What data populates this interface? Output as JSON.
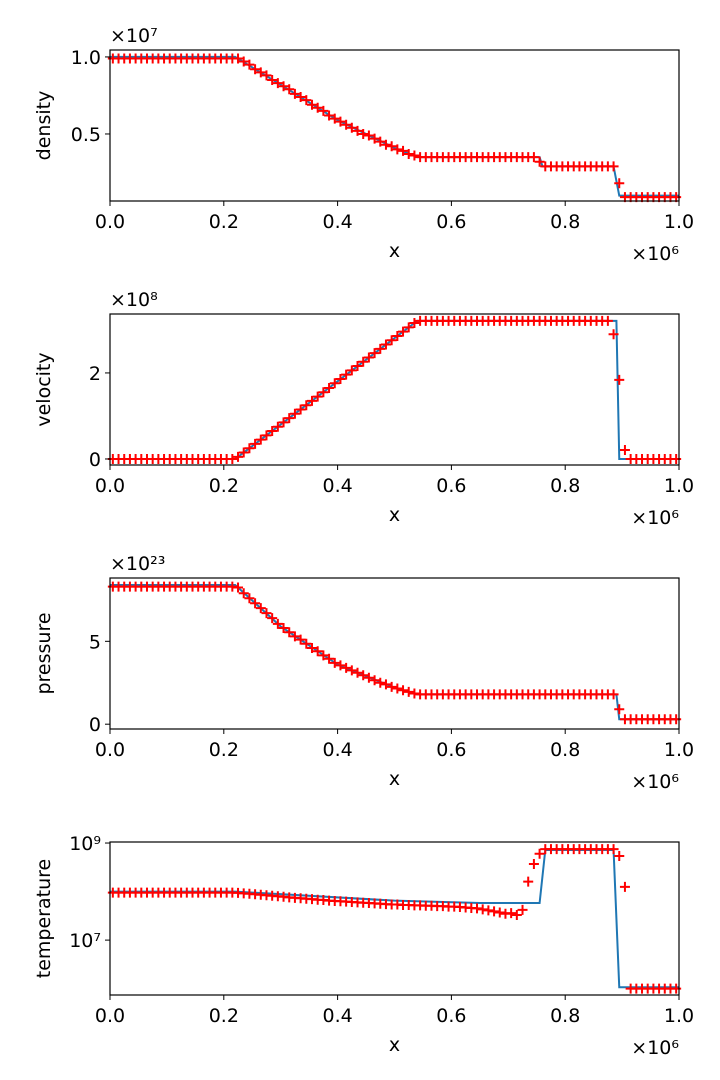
{
  "chart_data": [
    {
      "type": "line",
      "xlabel": "x",
      "ylabel": "density",
      "x_offset_label": "×10⁶",
      "y_offset_label": "×10⁷",
      "xlim": [
        0,
        1
      ],
      "xticks": [
        {
          "value": 0,
          "label": "0.0"
        },
        0.2,
        0.4,
        0.6,
        0.8,
        {
          "value": 1,
          "label": "1.0"
        }
      ],
      "ylim": [
        0.065,
        1.045
      ],
      "yticks": [
        0.5,
        {
          "value": 1,
          "label": "1.0"
        }
      ],
      "series": [
        {
          "color": "#1f77b4",
          "style": "line",
          "x": [
            0,
            0.22,
            0.3,
            0.4,
            0.5,
            0.54,
            0.755,
            0.76,
            0.885,
            0.895,
            1
          ],
          "values": [
            1,
            1,
            0.82,
            0.59,
            0.41,
            0.35,
            0.35,
            0.29,
            0.29,
            0.1,
            0.1
          ]
        },
        {
          "color": "#ff0000",
          "style": "plus",
          "x": [
            0.005,
            0.015,
            0.025,
            0.035,
            0.045,
            0.055,
            0.065,
            0.075,
            0.085,
            0.095,
            0.105,
            0.115,
            0.125,
            0.135,
            0.145,
            0.155,
            0.165,
            0.175,
            0.185,
            0.195,
            0.205,
            0.215,
            0.225,
            0.235,
            0.245,
            0.255,
            0.265,
            0.275,
            0.285,
            0.295,
            0.305,
            0.315,
            0.325,
            0.335,
            0.345,
            0.355,
            0.365,
            0.375,
            0.385,
            0.395,
            0.405,
            0.415,
            0.425,
            0.435,
            0.445,
            0.455,
            0.465,
            0.475,
            0.485,
            0.495,
            0.505,
            0.515,
            0.525,
            0.535,
            0.545,
            0.555,
            0.565,
            0.575,
            0.585,
            0.595,
            0.605,
            0.615,
            0.625,
            0.635,
            0.645,
            0.655,
            0.665,
            0.675,
            0.685,
            0.695,
            0.705,
            0.715,
            0.725,
            0.735,
            0.745,
            0.755,
            0.765,
            0.775,
            0.785,
            0.795,
            0.805,
            0.815,
            0.825,
            0.835,
            0.845,
            0.855,
            0.865,
            0.875,
            0.885,
            0.895,
            0.905,
            0.915,
            0.925,
            0.935,
            0.945,
            0.955,
            0.965,
            0.975,
            0.985,
            0.995
          ],
          "values": [
            0.99,
            0.99,
            0.99,
            0.99,
            0.99,
            0.99,
            0.99,
            0.99,
            0.99,
            0.99,
            0.99,
            0.99,
            0.99,
            0.99,
            0.99,
            0.99,
            0.99,
            0.99,
            0.99,
            0.99,
            0.99,
            0.99,
            0.99,
            0.97,
            0.95,
            0.92,
            0.9,
            0.88,
            0.85,
            0.83,
            0.81,
            0.79,
            0.76,
            0.74,
            0.72,
            0.69,
            0.67,
            0.65,
            0.62,
            0.6,
            0.58,
            0.56,
            0.54,
            0.52,
            0.5,
            0.49,
            0.47,
            0.45,
            0.43,
            0.42,
            0.4,
            0.39,
            0.37,
            0.36,
            0.35,
            0.35,
            0.35,
            0.35,
            0.35,
            0.35,
            0.35,
            0.35,
            0.35,
            0.35,
            0.35,
            0.35,
            0.35,
            0.35,
            0.35,
            0.35,
            0.35,
            0.35,
            0.35,
            0.35,
            0.35,
            0.32,
            0.29,
            0.29,
            0.29,
            0.29,
            0.29,
            0.29,
            0.29,
            0.29,
            0.29,
            0.29,
            0.29,
            0.29,
            0.29,
            0.18,
            0.09,
            0.09,
            0.09,
            0.09,
            0.09,
            0.09,
            0.09,
            0.09,
            0.09,
            0.09
          ]
        }
      ]
    },
    {
      "type": "line",
      "xlabel": "x",
      "ylabel": "velocity",
      "x_offset_label": "×10⁶",
      "y_offset_label": "×10⁸",
      "xlim": [
        0,
        1
      ],
      "xticks": [
        {
          "value": 0,
          "label": "0.0"
        },
        0.2,
        0.4,
        0.6,
        0.8,
        {
          "value": 1,
          "label": "1.0"
        }
      ],
      "ylim": [
        -0.14,
        3.37
      ],
      "yticks": [
        0,
        2
      ],
      "series": [
        {
          "color": "#1f77b4",
          "style": "line",
          "x": [
            0,
            0.22,
            0.54,
            0.89,
            0.895,
            1
          ],
          "values": [
            0,
            0,
            3.21,
            3.21,
            0,
            0
          ]
        },
        {
          "color": "#ff0000",
          "style": "plus",
          "x": [
            0.005,
            0.015,
            0.025,
            0.035,
            0.045,
            0.055,
            0.065,
            0.075,
            0.085,
            0.095,
            0.105,
            0.115,
            0.125,
            0.135,
            0.145,
            0.155,
            0.165,
            0.175,
            0.185,
            0.195,
            0.205,
            0.215,
            0.225,
            0.235,
            0.245,
            0.255,
            0.265,
            0.275,
            0.285,
            0.295,
            0.305,
            0.315,
            0.325,
            0.335,
            0.345,
            0.355,
            0.365,
            0.375,
            0.385,
            0.395,
            0.405,
            0.415,
            0.425,
            0.435,
            0.445,
            0.455,
            0.465,
            0.475,
            0.485,
            0.495,
            0.505,
            0.515,
            0.525,
            0.535,
            0.545,
            0.555,
            0.565,
            0.575,
            0.585,
            0.595,
            0.605,
            0.615,
            0.625,
            0.635,
            0.645,
            0.655,
            0.665,
            0.675,
            0.685,
            0.695,
            0.705,
            0.715,
            0.725,
            0.735,
            0.745,
            0.755,
            0.765,
            0.775,
            0.785,
            0.795,
            0.805,
            0.815,
            0.825,
            0.835,
            0.845,
            0.855,
            0.865,
            0.875,
            0.885,
            0.895,
            0.905,
            0.915,
            0.925,
            0.935,
            0.945,
            0.955,
            0.965,
            0.975,
            0.985,
            0.995
          ],
          "values": [
            0,
            0,
            0,
            0,
            0,
            0,
            0,
            0,
            0,
            0,
            0,
            0,
            0,
            0,
            0,
            0,
            0,
            0,
            0,
            0,
            0,
            0,
            0.05,
            0.15,
            0.25,
            0.35,
            0.45,
            0.55,
            0.65,
            0.75,
            0.85,
            0.95,
            1.05,
            1.15,
            1.25,
            1.35,
            1.45,
            1.55,
            1.65,
            1.76,
            1.86,
            1.96,
            2.06,
            2.16,
            2.26,
            2.36,
            2.46,
            2.56,
            2.66,
            2.76,
            2.86,
            2.96,
            3.06,
            3.16,
            3.21,
            3.21,
            3.21,
            3.21,
            3.21,
            3.21,
            3.21,
            3.21,
            3.21,
            3.21,
            3.21,
            3.21,
            3.21,
            3.21,
            3.21,
            3.21,
            3.21,
            3.21,
            3.21,
            3.21,
            3.21,
            3.21,
            3.21,
            3.21,
            3.21,
            3.21,
            3.21,
            3.21,
            3.21,
            3.21,
            3.21,
            3.21,
            3.21,
            3.21,
            2.9,
            1.84,
            0.21,
            0,
            0,
            0,
            0,
            0,
            0,
            0,
            0,
            0
          ]
        }
      ]
    },
    {
      "type": "line",
      "xlabel": "x",
      "ylabel": "pressure",
      "x_offset_label": "×10⁶",
      "y_offset_label": "×10²³",
      "xlim": [
        0,
        1
      ],
      "xticks": [
        {
          "value": 0,
          "label": "0.0"
        },
        0.2,
        0.4,
        0.6,
        0.8,
        {
          "value": 1,
          "label": "1.0"
        }
      ],
      "ylim": [
        -0.29,
        8.82
      ],
      "yticks": [
        0,
        5
      ],
      "series": [
        {
          "color": "#1f77b4",
          "style": "line",
          "x": [
            0,
            0.22,
            0.3,
            0.4,
            0.5,
            0.54,
            0.89,
            0.895,
            1
          ],
          "values": [
            8.4,
            8.4,
            5.9,
            3.6,
            2.2,
            1.8,
            1.8,
            0.3,
            0.3
          ]
        },
        {
          "color": "#ff0000",
          "style": "plus",
          "x": [
            0.005,
            0.015,
            0.025,
            0.035,
            0.045,
            0.055,
            0.065,
            0.075,
            0.085,
            0.095,
            0.105,
            0.115,
            0.125,
            0.135,
            0.145,
            0.155,
            0.165,
            0.175,
            0.185,
            0.195,
            0.205,
            0.215,
            0.225,
            0.235,
            0.245,
            0.255,
            0.265,
            0.275,
            0.285,
            0.295,
            0.305,
            0.315,
            0.325,
            0.335,
            0.345,
            0.355,
            0.365,
            0.375,
            0.385,
            0.395,
            0.405,
            0.415,
            0.425,
            0.435,
            0.445,
            0.455,
            0.465,
            0.475,
            0.485,
            0.495,
            0.505,
            0.515,
            0.525,
            0.535,
            0.545,
            0.555,
            0.565,
            0.575,
            0.585,
            0.595,
            0.605,
            0.615,
            0.625,
            0.635,
            0.645,
            0.655,
            0.665,
            0.675,
            0.685,
            0.695,
            0.705,
            0.715,
            0.725,
            0.735,
            0.745,
            0.755,
            0.765,
            0.775,
            0.785,
            0.795,
            0.805,
            0.815,
            0.825,
            0.835,
            0.845,
            0.855,
            0.865,
            0.875,
            0.885,
            0.895,
            0.905,
            0.915,
            0.925,
            0.935,
            0.945,
            0.955,
            0.965,
            0.975,
            0.985,
            0.995
          ],
          "values": [
            8.3,
            8.3,
            8.3,
            8.3,
            8.3,
            8.3,
            8.3,
            8.3,
            8.3,
            8.3,
            8.3,
            8.3,
            8.3,
            8.3,
            8.3,
            8.3,
            8.3,
            8.3,
            8.3,
            8.3,
            8.3,
            8.3,
            8.25,
            7.9,
            7.6,
            7.3,
            7,
            6.7,
            6.4,
            6.05,
            5.8,
            5.55,
            5.3,
            5.1,
            4.85,
            4.6,
            4.4,
            4.15,
            3.95,
            3.7,
            3.55,
            3.4,
            3.25,
            3.1,
            2.95,
            2.8,
            2.65,
            2.5,
            2.4,
            2.25,
            2.15,
            2.05,
            1.95,
            1.85,
            1.8,
            1.8,
            1.8,
            1.8,
            1.8,
            1.8,
            1.8,
            1.8,
            1.8,
            1.8,
            1.8,
            1.8,
            1.8,
            1.8,
            1.8,
            1.8,
            1.8,
            1.8,
            1.8,
            1.8,
            1.8,
            1.8,
            1.8,
            1.8,
            1.8,
            1.8,
            1.8,
            1.8,
            1.8,
            1.8,
            1.8,
            1.8,
            1.8,
            1.8,
            1.8,
            0.9,
            0.3,
            0.3,
            0.3,
            0.3,
            0.3,
            0.3,
            0.3,
            0.3,
            0.3,
            0.3
          ]
        }
      ]
    },
    {
      "type": "line",
      "xlabel": "x",
      "ylabel": "temperature",
      "x_offset_label": "×10⁶",
      "log_y": true,
      "xlim": [
        0,
        1
      ],
      "xticks": [
        {
          "value": 0,
          "label": "0.0"
        },
        0.2,
        0.4,
        0.6,
        0.8,
        {
          "value": 1,
          "label": "1.0"
        }
      ],
      "ylim": [
        740000,
        1050000000
      ],
      "yticks": [
        {
          "value": 10000000,
          "label": "10⁷"
        },
        {
          "value": 1000000000,
          "label": "10⁹"
        }
      ],
      "series": [
        {
          "color": "#1f77b4",
          "style": "line",
          "x": [
            0,
            0.22,
            0.5,
            0.65,
            0.755,
            0.765,
            0.885,
            0.895,
            1
          ],
          "values": [
            100000000,
            100000000,
            65000000,
            58000000,
            58000000,
            720000000,
            720000000,
            1070000,
            1070000
          ]
        },
        {
          "color": "#ff0000",
          "style": "plus",
          "x": [
            0.005,
            0.015,
            0.025,
            0.035,
            0.045,
            0.055,
            0.065,
            0.075,
            0.085,
            0.095,
            0.105,
            0.115,
            0.125,
            0.135,
            0.145,
            0.155,
            0.165,
            0.175,
            0.185,
            0.195,
            0.205,
            0.215,
            0.225,
            0.235,
            0.245,
            0.255,
            0.265,
            0.275,
            0.285,
            0.295,
            0.305,
            0.315,
            0.325,
            0.335,
            0.345,
            0.355,
            0.365,
            0.375,
            0.385,
            0.395,
            0.405,
            0.415,
            0.425,
            0.435,
            0.445,
            0.455,
            0.465,
            0.475,
            0.485,
            0.495,
            0.505,
            0.515,
            0.525,
            0.535,
            0.545,
            0.555,
            0.565,
            0.575,
            0.585,
            0.595,
            0.605,
            0.615,
            0.625,
            0.635,
            0.645,
            0.655,
            0.665,
            0.675,
            0.685,
            0.695,
            0.705,
            0.715,
            0.725,
            0.735,
            0.745,
            0.755,
            0.765,
            0.775,
            0.785,
            0.795,
            0.805,
            0.815,
            0.825,
            0.835,
            0.845,
            0.855,
            0.865,
            0.875,
            0.885,
            0.895,
            0.905,
            0.915,
            0.925,
            0.935,
            0.945,
            0.955,
            0.965,
            0.975,
            0.985,
            0.995
          ],
          "values": [
            95000000,
            95000000,
            95000000,
            95000000,
            95000000,
            95000000,
            95000000,
            95000000,
            95000000,
            95000000,
            95000000,
            95000000,
            95000000,
            95000000,
            95000000,
            95000000,
            95000000,
            95000000,
            95000000,
            95000000,
            95000000,
            95000000,
            94000000,
            92000000,
            90000000,
            88000000,
            86000000,
            84000000,
            82000000,
            80000000,
            78000000,
            76000000,
            74000000,
            73000000,
            71000000,
            70000000,
            68000000,
            67000000,
            65000000,
            64000000,
            63000000,
            62000000,
            61000000,
            60000000,
            59000000,
            58000000,
            57000000,
            56000000,
            55000000,
            54000000,
            54000000,
            53000000,
            53000000,
            52000000,
            52000000,
            51000000,
            51000000,
            50000000,
            50000000,
            49000000,
            49000000,
            48000000,
            47000000,
            46000000,
            45000000,
            43000000,
            41000000,
            39000000,
            37000000,
            35000000,
            36000000,
            33000000,
            42000000,
            160000000,
            370000000,
            600000000,
            750000000,
            750000000,
            750000000,
            750000000,
            750000000,
            750000000,
            750000000,
            750000000,
            750000000,
            750000000,
            750000000,
            750000000,
            750000000,
            540000000,
            125000000,
            1000000,
            1000000,
            1000000,
            1000000,
            1000000,
            1000000,
            1000000,
            1000000,
            1000000
          ]
        }
      ]
    }
  ]
}
